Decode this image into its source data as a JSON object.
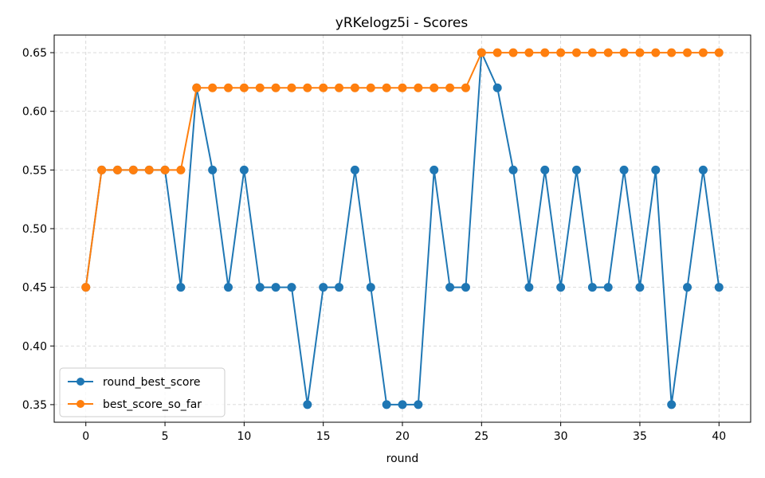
{
  "chart_data": {
    "type": "line",
    "title": "yRKelogz5i - Scores",
    "xlabel": "round",
    "ylabel": "",
    "xlim": [
      -2,
      42
    ],
    "ylim": [
      0.335,
      0.665
    ],
    "xticks": [
      0,
      5,
      10,
      15,
      20,
      25,
      30,
      35,
      40
    ],
    "xtick_labels": [
      "0",
      "5",
      "10",
      "15",
      "20",
      "25",
      "30",
      "35",
      "40"
    ],
    "yticks": [
      0.35,
      0.4,
      0.45,
      0.5,
      0.55,
      0.6,
      0.65
    ],
    "ytick_labels": [
      "0.35",
      "0.40",
      "0.45",
      "0.50",
      "0.55",
      "0.60",
      "0.65"
    ],
    "grid": true,
    "legend_position": "bottom-left",
    "x": [
      0,
      1,
      2,
      3,
      4,
      5,
      6,
      7,
      8,
      9,
      10,
      11,
      12,
      13,
      14,
      15,
      16,
      17,
      18,
      19,
      20,
      21,
      22,
      23,
      24,
      25,
      26,
      27,
      28,
      29,
      30,
      31,
      32,
      33,
      34,
      35,
      36,
      37,
      38,
      39,
      40
    ],
    "series": [
      {
        "name": "round_best_score",
        "color": "#1f77b4",
        "values": [
          0.45,
          0.55,
          0.55,
          0.55,
          0.55,
          0.55,
          0.45,
          0.62,
          0.55,
          0.45,
          0.55,
          0.45,
          0.45,
          0.45,
          0.35,
          0.45,
          0.45,
          0.55,
          0.45,
          0.35,
          0.35,
          0.35,
          0.55,
          0.45,
          0.45,
          0.65,
          0.62,
          0.55,
          0.45,
          0.55,
          0.45,
          0.55,
          0.45,
          0.45,
          0.55,
          0.45,
          0.55,
          0.35,
          0.45,
          0.55,
          0.45
        ]
      },
      {
        "name": "best_score_so_far",
        "color": "#ff7f0e",
        "values": [
          0.45,
          0.55,
          0.55,
          0.55,
          0.55,
          0.55,
          0.55,
          0.62,
          0.62,
          0.62,
          0.62,
          0.62,
          0.62,
          0.62,
          0.62,
          0.62,
          0.62,
          0.62,
          0.62,
          0.62,
          0.62,
          0.62,
          0.62,
          0.62,
          0.62,
          0.65,
          0.65,
          0.65,
          0.65,
          0.65,
          0.65,
          0.65,
          0.65,
          0.65,
          0.65,
          0.65,
          0.65,
          0.65,
          0.65,
          0.65,
          0.65
        ]
      }
    ]
  }
}
